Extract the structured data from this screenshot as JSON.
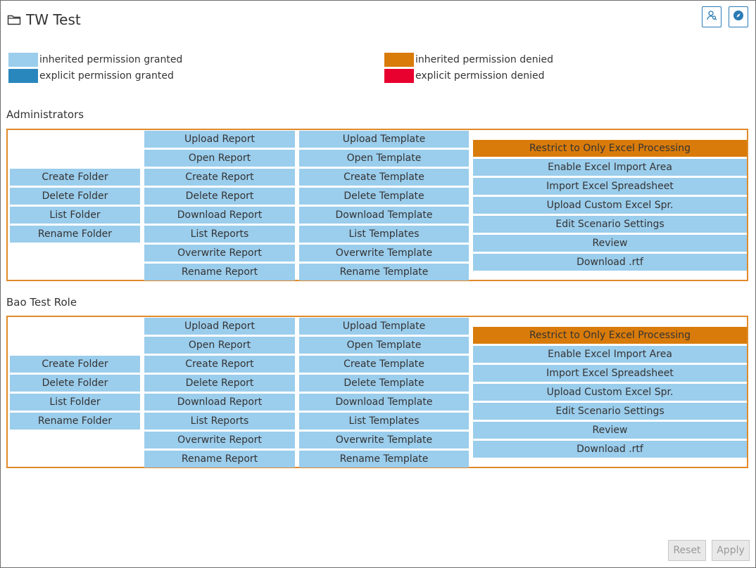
{
  "window": {
    "title": "TW Test"
  },
  "colors": {
    "inherited_granted": "#9bcdec",
    "explicit_granted": "#2a87bd",
    "inherited_denied": "#d97b0a",
    "explicit_denied": "#e8002e",
    "section_border": "#e08a2a"
  },
  "toolbar": {
    "icons": [
      "user-search-icon",
      "compass-icon"
    ]
  },
  "legend": {
    "inherited_granted": "inherited permission granted",
    "explicit_granted": "explicit permission granted",
    "inherited_denied": "inherited permission denied",
    "explicit_denied": "explicit permission denied"
  },
  "sections": [
    {
      "name": "Administrators",
      "folder": [
        "Create Folder",
        "Delete Folder",
        "List Folder",
        "Rename Folder"
      ],
      "report": [
        "Upload Report",
        "Open Report",
        "Create Report",
        "Delete Report",
        "Download Report",
        "List Reports",
        "Overwrite Report",
        "Rename Report"
      ],
      "template": [
        "Upload Template",
        "Open Template",
        "Create Template",
        "Delete Template",
        "Download Template",
        "List Templates",
        "Overwrite Template",
        "Rename Template"
      ],
      "excel": [
        "Restrict to Only Excel Processing",
        "Enable Excel Import Area",
        "Import Excel Spreadsheet",
        "Upload Custom Excel Spr.",
        "Edit Scenario Settings",
        "Review",
        "Download .rtf"
      ]
    },
    {
      "name": "Bao Test Role",
      "folder": [
        "Create Folder",
        "Delete Folder",
        "List Folder",
        "Rename Folder"
      ],
      "report": [
        "Upload Report",
        "Open Report",
        "Create Report",
        "Delete Report",
        "Download Report",
        "List Reports",
        "Overwrite Report",
        "Rename Report"
      ],
      "template": [
        "Upload Template",
        "Open Template",
        "Create Template",
        "Delete Template",
        "Download Template",
        "List Templates",
        "Overwrite Template",
        "Rename Template"
      ],
      "excel": [
        "Restrict to Only Excel Processing",
        "Enable Excel Import Area",
        "Import Excel Spreadsheet",
        "Upload Custom Excel Spr.",
        "Edit Scenario Settings",
        "Review",
        "Download .rtf"
      ]
    }
  ],
  "footer": {
    "reset_label": "Reset",
    "apply_label": "Apply"
  }
}
